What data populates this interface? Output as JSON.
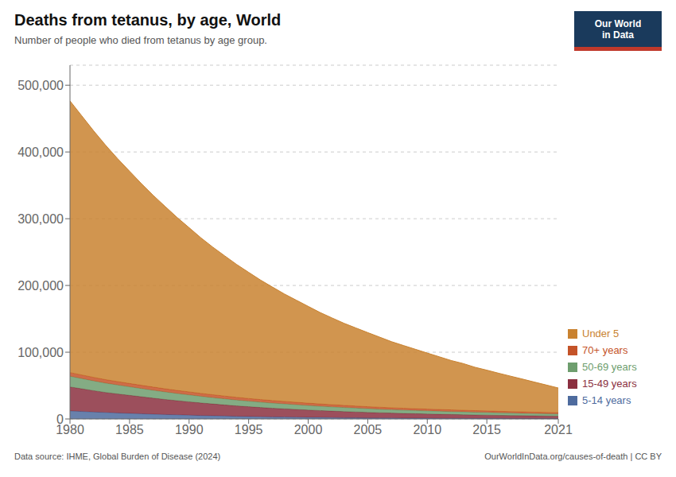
{
  "chart_data": {
    "type": "area",
    "stacked": true,
    "title": "Deaths from tetanus, by age, World",
    "subtitle": "Number of people who died from tetanus by age group.",
    "annotations": [
      "Data source: IHME, Global Burden of Disease (2024)",
      "OurWorldInData.org/causes-of-death | CC BY",
      "Our World",
      "in Data"
    ],
    "x": [
      1980,
      1981,
      1982,
      1983,
      1984,
      1985,
      1986,
      1987,
      1988,
      1989,
      1990,
      1991,
      1992,
      1993,
      1994,
      1995,
      1996,
      1997,
      1998,
      1999,
      2000,
      2001,
      2002,
      2003,
      2004,
      2005,
      2006,
      2007,
      2008,
      2009,
      2010,
      2011,
      2012,
      2013,
      2014,
      2015,
      2016,
      2017,
      2018,
      2019,
      2020,
      2021
    ],
    "series": [
      {
        "name": "5-14 years",
        "color": "#4e6b9e",
        "values": [
          12000,
          11200,
          10400,
          9700,
          9000,
          8400,
          7800,
          7200,
          6700,
          6200,
          5700,
          5200,
          4800,
          4400,
          4000,
          3700,
          3400,
          3100,
          2900,
          2700,
          2500,
          2300,
          2100,
          1900,
          1800,
          1600,
          1500,
          1400,
          1300,
          1200,
          1100,
          1000,
          950,
          900,
          850,
          800,
          750,
          700,
          680,
          650,
          620,
          600
        ]
      },
      {
        "name": "15-49 years",
        "color": "#8b3040",
        "values": [
          36000,
          34000,
          32000,
          30000,
          28500,
          27000,
          25500,
          24000,
          22500,
          21200,
          20000,
          18800,
          17700,
          16600,
          15600,
          14700,
          13800,
          13000,
          12300,
          11600,
          10900,
          10300,
          9700,
          9200,
          8700,
          8200,
          7800,
          7400,
          7000,
          6700,
          6400,
          6100,
          5800,
          5500,
          5200,
          5000,
          4700,
          4500,
          4300,
          4100,
          3900,
          3700
        ]
      },
      {
        "name": "50-69 years",
        "color": "#6e9e6e",
        "values": [
          16000,
          15300,
          14600,
          14000,
          13400,
          12800,
          12300,
          11800,
          11300,
          10800,
          10400,
          9900,
          9500,
          9100,
          8700,
          8300,
          8000,
          7700,
          7400,
          7100,
          6800,
          6500,
          6300,
          6100,
          5800,
          5600,
          5400,
          5200,
          5000,
          4800,
          4600,
          4500,
          4300,
          4200,
          4000,
          3900,
          3700,
          3600,
          3500,
          3300,
          3200,
          3000
        ]
      },
      {
        "name": "70+ years",
        "color": "#c45328",
        "values": [
          5500,
          5400,
          5300,
          5200,
          5100,
          5000,
          4900,
          4800,
          4700,
          4600,
          4500,
          4400,
          4300,
          4200,
          4100,
          4000,
          3900,
          3800,
          3700,
          3600,
          3500,
          3400,
          3300,
          3200,
          3100,
          3000,
          2900,
          2800,
          2750,
          2700,
          2650,
          2600,
          2550,
          2500,
          2450,
          2400,
          2350,
          2300,
          2250,
          2200,
          2150,
          2100
        ]
      },
      {
        "name": "Under 5",
        "color": "#c98230",
        "values": [
          407000,
          388000,
          369000,
          351000,
          334000,
          318000,
          302000,
          287000,
          273000,
          259000,
          246000,
          233000,
          221000,
          210000,
          199000,
          189000,
          179000,
          170000,
          161000,
          153000,
          145000,
          137000,
          130000,
          123000,
          117000,
          111000,
          105000,
          99000,
          94000,
          89000,
          84000,
          79000,
          74000,
          70000,
          65000,
          61000,
          57000,
          53000,
          49000,
          45000,
          41000,
          37000
        ]
      }
    ],
    "xlim": [
      1980,
      2021
    ],
    "xticks": [
      1980,
      1985,
      1990,
      1995,
      2000,
      2005,
      2010,
      2015,
      2021
    ],
    "ylim": [
      0,
      530000
    ],
    "yticks": [
      0,
      {
        "value": 100000,
        "label": "100,000"
      },
      {
        "value": 200000,
        "label": "200,000"
      },
      {
        "value": 300000,
        "label": "300,000"
      },
      {
        "value": 400000,
        "label": "400,000"
      },
      {
        "value": 500000,
        "label": "500,000"
      }
    ],
    "grid": true,
    "legend": "right"
  }
}
